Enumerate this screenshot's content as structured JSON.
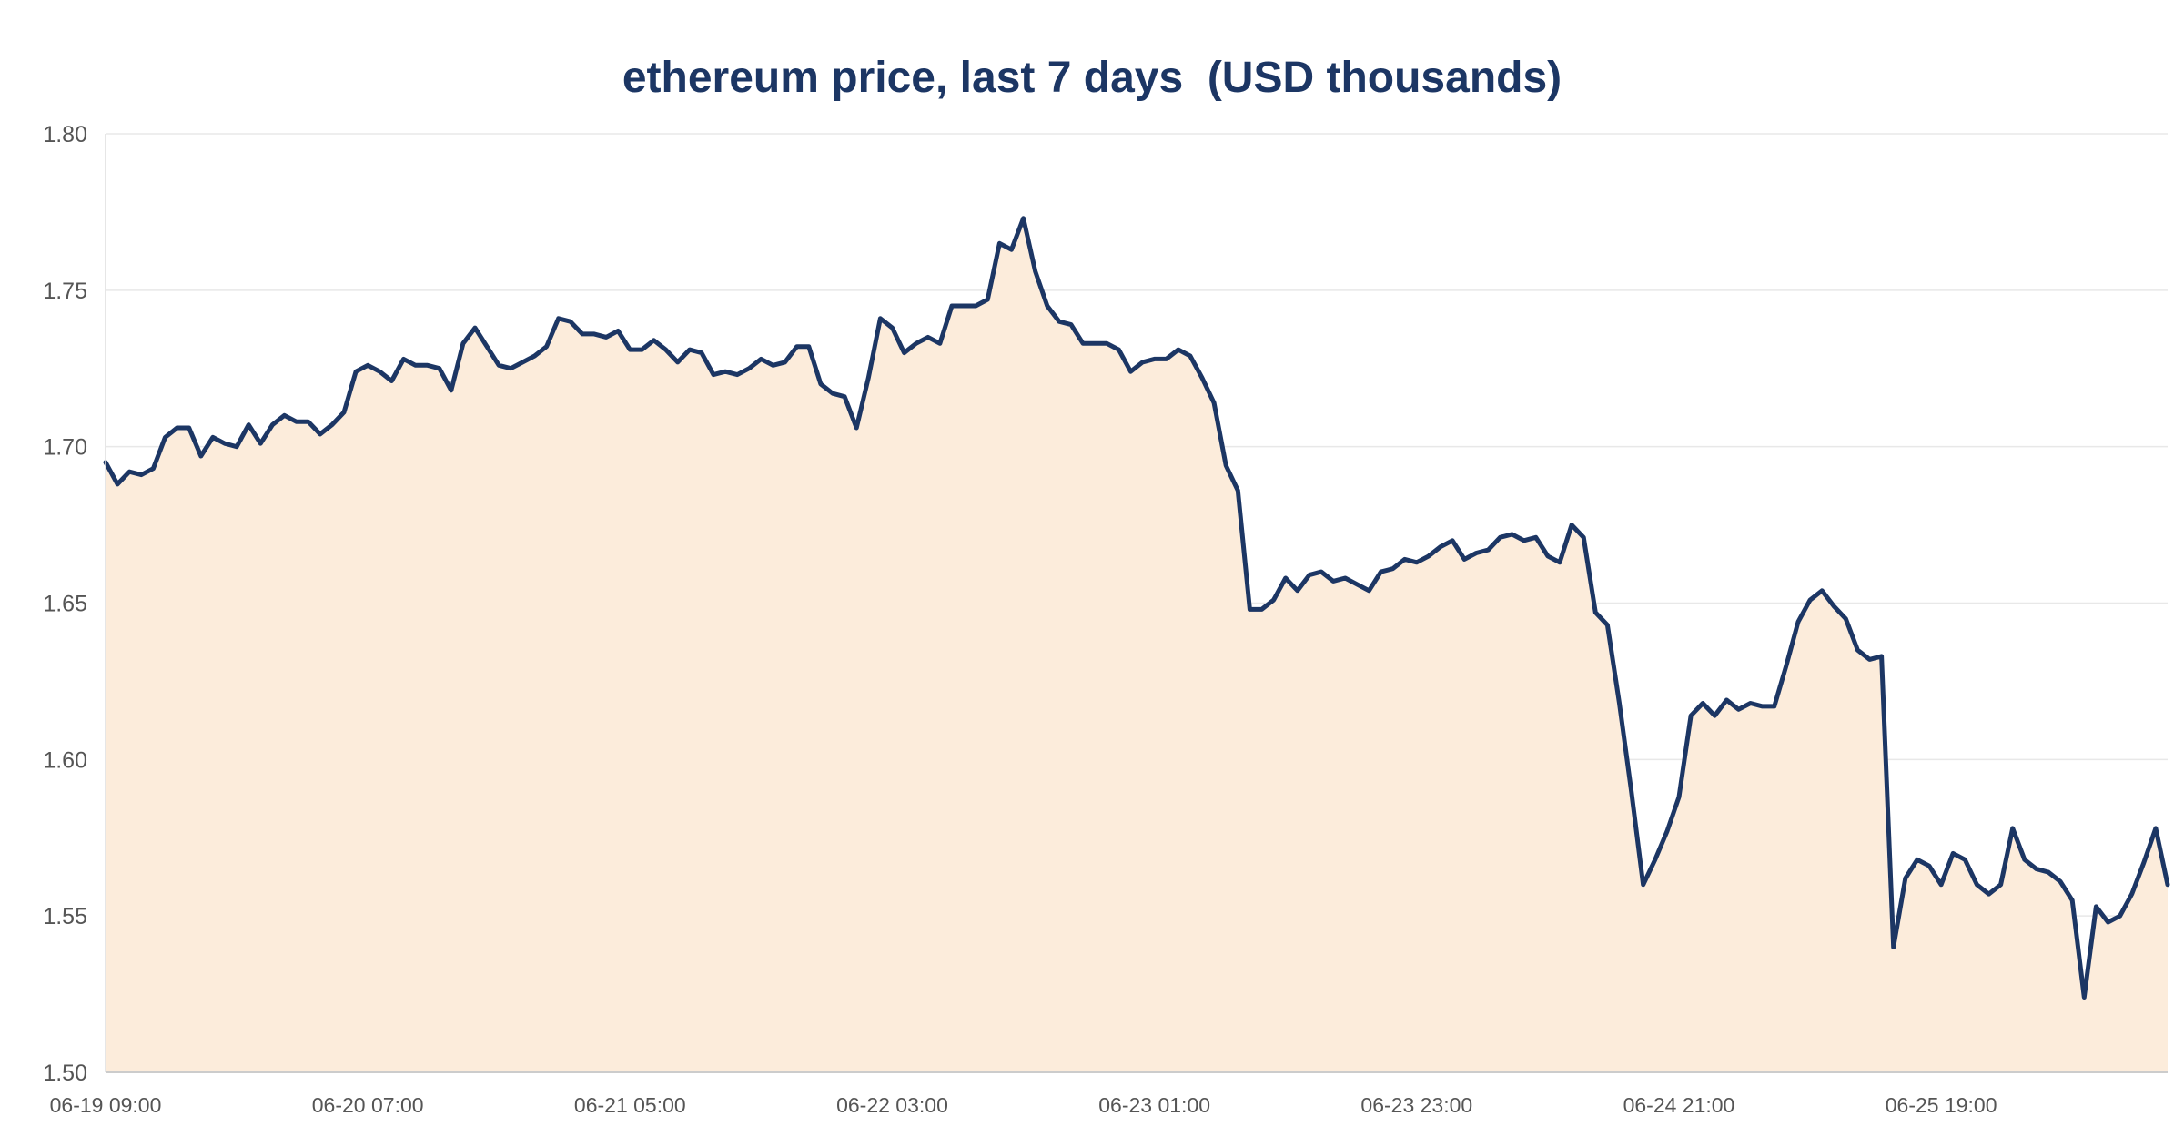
{
  "chart_data": {
    "type": "area",
    "title": "ethereum price, last 7 days  (USD thousands)",
    "xlabel": "",
    "ylabel": "",
    "ylim": [
      1.5,
      1.8
    ],
    "yticks": [
      "1.50",
      "1.55",
      "1.60",
      "1.65",
      "1.70",
      "1.75",
      "1.80"
    ],
    "xticks": [
      "06-19 09:00",
      "06-20 07:00",
      "06-21 05:00",
      "06-22 03:00",
      "06-23 01:00",
      "06-23 23:00",
      "06-24 21:00",
      "06-25 19:00"
    ],
    "x_start": "06-19 09:00",
    "x_step_hours": 1,
    "grid": true,
    "line_color": "#1c3664",
    "fill_color": "#fcecdb",
    "series": [
      {
        "values": [
          1.695,
          1.688,
          1.692,
          1.691,
          1.693,
          1.703,
          1.706,
          1.706,
          1.697,
          1.703,
          1.701,
          1.7,
          1.707,
          1.701,
          1.707,
          1.71,
          1.708,
          1.708,
          1.704,
          1.707,
          1.711,
          1.724,
          1.726,
          1.724,
          1.721,
          1.728,
          1.726,
          1.726,
          1.725,
          1.718,
          1.733,
          1.738,
          1.732,
          1.726,
          1.725,
          1.727,
          1.729,
          1.732,
          1.741,
          1.74,
          1.736,
          1.736,
          1.735,
          1.737,
          1.731,
          1.731,
          1.734,
          1.731,
          1.727,
          1.731,
          1.73,
          1.723,
          1.724,
          1.723,
          1.725,
          1.728,
          1.726,
          1.727,
          1.732,
          1.732,
          1.72,
          1.717,
          1.716,
          1.706,
          1.722,
          1.741,
          1.738,
          1.73,
          1.733,
          1.735,
          1.733,
          1.745,
          1.745,
          1.745,
          1.747,
          1.765,
          1.763,
          1.773,
          1.756,
          1.745,
          1.74,
          1.739,
          1.733,
          1.733,
          1.733,
          1.731,
          1.724,
          1.727,
          1.728,
          1.728,
          1.731,
          1.729,
          1.722,
          1.714,
          1.694,
          1.686,
          1.648,
          1.648,
          1.651,
          1.658,
          1.654,
          1.659,
          1.66,
          1.657,
          1.658,
          1.656,
          1.654,
          1.66,
          1.661,
          1.664,
          1.663,
          1.665,
          1.668,
          1.67,
          1.664,
          1.666,
          1.667,
          1.671,
          1.672,
          1.67,
          1.671,
          1.665,
          1.663,
          1.675,
          1.671,
          1.647,
          1.643,
          1.618,
          1.59,
          1.56,
          1.568,
          1.577,
          1.588,
          1.614,
          1.618,
          1.614,
          1.619,
          1.616,
          1.618,
          1.617,
          1.617,
          1.63,
          1.644,
          1.651,
          1.654,
          1.649,
          1.645,
          1.635,
          1.632,
          1.633,
          1.54,
          1.562,
          1.568,
          1.566,
          1.56,
          1.57,
          1.568,
          1.56,
          1.557,
          1.56,
          1.578,
          1.568,
          1.565,
          1.564,
          1.561,
          1.555,
          1.524,
          1.553,
          1.548,
          1.55,
          1.557,
          1.567,
          1.578,
          1.56
        ]
      }
    ]
  }
}
